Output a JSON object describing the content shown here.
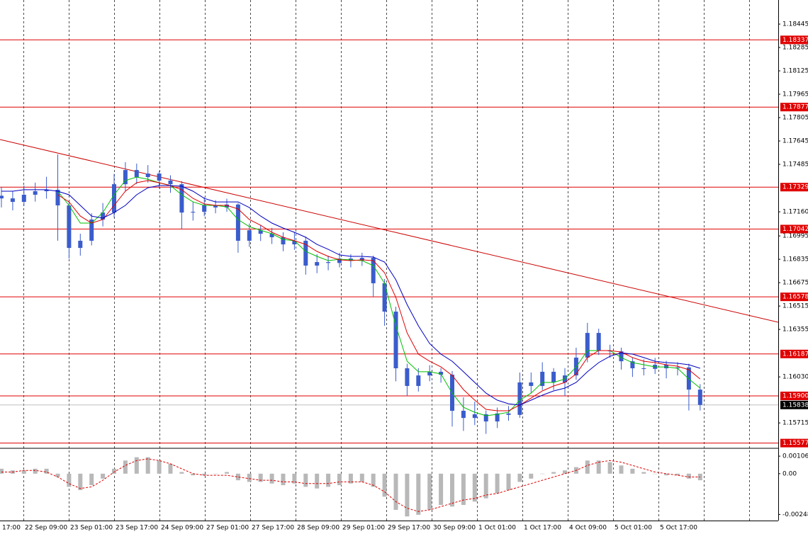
{
  "chart_data": {
    "type": "candlestick",
    "ylim": [
      1.15546,
      1.1861
    ],
    "yticks": [
      1.18445,
      1.18285,
      1.18125,
      1.17965,
      1.17805,
      1.17645,
      1.17485,
      {
        "value": 1.1716,
        "label": "1.17160"
      },
      1.16995,
      1.16835,
      1.16675,
      1.16515,
      1.16355,
      {
        "value": 1.1603,
        "label": "1.16030"
      },
      1.15715
    ],
    "time_labels": [
      "17:00",
      "22 Sep 09:00",
      "23 Sep 01:00",
      "23 Sep 17:00",
      "24 Sep 09:00",
      "27 Sep 01:00",
      "27 Sep 17:00",
      "28 Sep 09:00",
      "29 Sep 01:00",
      "29 Sep 17:00",
      "30 Sep 09:00",
      "1 Oct 01:00",
      "1 Oct 17:00",
      "4 Oct 09:00",
      "5 Oct 01:00",
      "5 Oct 17:00"
    ],
    "color": "#3a5ccc",
    "open": [
      1.1727,
      1.17252,
      1.17228,
      1.17277,
      1.17301,
      1.17311,
      1.17204,
      1.16913,
      1.16962,
      1.17107,
      1.17155,
      1.17349,
      1.17446,
      1.17398,
      1.17422,
      1.17374,
      1.17349,
      1.17155,
      1.1716,
      1.17204,
      1.1719,
      1.1721,
      1.16962,
      1.17034,
      1.1701,
      1.16986,
      1.16937,
      1.16962,
      1.16792,
      1.16816,
      1.1681,
      1.1684,
      1.16826,
      1.16845,
      1.16671,
      1.16477,
      1.16089,
      1.15968,
      1.1604,
      1.16065,
      1.16045,
      1.15798,
      1.15749,
      1.15774,
      1.15725,
      1.1578,
      1.1577,
      1.15992,
      1.15968,
      1.16065,
      1.15992,
      1.1604,
      1.16162,
      1.16331,
      1.1621,
      1.16205,
      1.16137,
      1.16089,
      1.16085,
      1.16113,
      1.16089,
      1.16095,
      1.15943
    ],
    "high": [
      1.1733,
      1.173,
      1.1734,
      1.1736,
      1.174,
      1.17553,
      1.1723,
      1.1701,
      1.1715,
      1.1722,
      1.1742,
      1.175,
      1.1749,
      1.1748,
      1.1744,
      1.1741,
      1.1737,
      1.1723,
      1.1726,
      1.1724,
      1.1725,
      1.1722,
      1.1708,
      1.1707,
      1.1705,
      1.1702,
      1.1702,
      1.1699,
      1.1687,
      1.1686,
      1.1688,
      1.1687,
      1.1688,
      1.1686,
      1.167,
      1.1651,
      1.1612,
      1.1609,
      1.1611,
      1.1609,
      1.1607,
      1.1589,
      1.1586,
      1.158,
      1.1582,
      1.1583,
      1.1606,
      1.1606,
      1.1613,
      1.1609,
      1.1609,
      1.1623,
      1.164,
      1.1636,
      1.1625,
      1.1623,
      1.1616,
      1.1615,
      1.1616,
      1.1614,
      1.1613,
      1.1612,
      1.1598
    ],
    "low": [
      1.1719,
      1.1717,
      1.172,
      1.1723,
      1.1725,
      1.16962,
      1.1684,
      1.1686,
      1.1693,
      1.1706,
      1.1712,
      1.173,
      1.1735,
      1.1736,
      1.1732,
      1.1729,
      1.1704,
      1.171,
      1.1713,
      1.1715,
      1.1716,
      1.1688,
      1.1692,
      1.1696,
      1.1694,
      1.1689,
      1.169,
      1.1673,
      1.1674,
      1.1676,
      1.1678,
      1.1678,
      1.1679,
      1.1658,
      1.1638,
      1.16,
      1.159,
      1.1593,
      1.16,
      1.1599,
      1.1569,
      1.1566,
      1.157,
      1.1564,
      1.1568,
      1.1573,
      1.1575,
      1.1592,
      1.1594,
      1.1594,
      1.159,
      1.1601,
      1.1613,
      1.1618,
      1.1616,
      1.1608,
      1.1603,
      1.1604,
      1.1605,
      1.1602,
      1.1604,
      1.158,
      1.158
    ],
    "close": [
      1.17252,
      1.17228,
      1.17277,
      1.17301,
      1.17311,
      1.17204,
      1.16913,
      1.16962,
      1.17107,
      1.17155,
      1.17349,
      1.17446,
      1.17398,
      1.17422,
      1.17374,
      1.17349,
      1.17155,
      1.1716,
      1.17204,
      1.1719,
      1.1721,
      1.16962,
      1.17034,
      1.1701,
      1.16986,
      1.16937,
      1.16962,
      1.16792,
      1.16816,
      1.1681,
      1.1684,
      1.16826,
      1.16845,
      1.16671,
      1.16477,
      1.16089,
      1.15968,
      1.1604,
      1.16065,
      1.16045,
      1.15798,
      1.15749,
      1.15774,
      1.15725,
      1.1578,
      1.1577,
      1.15992,
      1.15968,
      1.16065,
      1.15992,
      1.1604,
      1.16162,
      1.16331,
      1.1621,
      1.16205,
      1.16137,
      1.16089,
      1.16085,
      1.16113,
      1.16089,
      1.16095,
      1.15943,
      1.15838
    ],
    "moving_averages": [
      {
        "color": "#00c000",
        "values": [
          null,
          null,
          null,
          null,
          null,
          1.17301,
          1.17204,
          1.17083,
          1.17083,
          1.17155,
          1.17277,
          1.17374,
          1.17398,
          1.17383,
          1.17359,
          1.1734,
          1.17277,
          1.17228,
          1.17204,
          1.17204,
          1.17194,
          1.17107,
          1.17058,
          1.17034,
          1.1701,
          1.16971,
          1.16962,
          1.16889,
          1.16855,
          1.16826,
          1.16835,
          1.16831,
          1.16826,
          1.16792,
          1.16671,
          1.1638,
          1.16137,
          1.16065,
          1.16065,
          1.1605,
          1.15919,
          1.15822,
          1.15788,
          1.15764,
          1.15774,
          1.15788,
          1.15871,
          1.15919,
          1.15992,
          1.15992,
          1.16016,
          1.16098,
          1.1621,
          1.1621,
          1.1621,
          1.16162,
          1.16128,
          1.16113,
          1.16098,
          1.16098,
          1.16089,
          1.16016,
          1.15953
        ]
      },
      {
        "color": "#e00000",
        "values": [
          null,
          null,
          null,
          null,
          null,
          1.17277,
          1.17228,
          1.17131,
          1.17083,
          1.17107,
          1.17204,
          1.17301,
          1.17359,
          1.17374,
          1.17359,
          1.1734,
          1.17311,
          1.17252,
          1.17214,
          1.17204,
          1.17204,
          1.1718,
          1.17107,
          1.17068,
          1.1702,
          1.16986,
          1.16962,
          1.16937,
          1.16889,
          1.16855,
          1.16831,
          1.16826,
          1.16831,
          1.16826,
          1.16743,
          1.16574,
          1.16331,
          1.16186,
          1.16137,
          1.16098,
          1.1604,
          1.15943,
          1.15871,
          1.15808,
          1.15798,
          1.15798,
          1.15837,
          1.15885,
          1.15934,
          1.15968,
          1.15992,
          1.1605,
          1.16162,
          1.1621,
          1.1621,
          1.162,
          1.16162,
          1.16137,
          1.16128,
          1.16113,
          1.16103,
          1.16079,
          1.16016
        ]
      },
      {
        "color": "#0000c0",
        "values": [
          1.17301,
          1.17301,
          1.17311,
          1.17311,
          1.17311,
          1.17301,
          1.17277,
          1.17204,
          1.17131,
          1.17117,
          1.17155,
          1.17204,
          1.17277,
          1.17325,
          1.1734,
          1.1734,
          1.17335,
          1.17301,
          1.17252,
          1.17228,
          1.17228,
          1.17228,
          1.17189,
          1.17131,
          1.17083,
          1.17049,
          1.1702,
          1.16986,
          1.16937,
          1.16903,
          1.16865,
          1.16855,
          1.16855,
          1.1685,
          1.16816,
          1.16695,
          1.16525,
          1.1638,
          1.16258,
          1.16186,
          1.16137,
          1.16065,
          1.15992,
          1.15919,
          1.15871,
          1.15846,
          1.15837,
          1.15871,
          1.15905,
          1.15934,
          1.15953,
          1.15992,
          1.16065,
          1.16128,
          1.16171,
          1.16195,
          1.16186,
          1.16162,
          1.16137,
          1.16128,
          1.16123,
          1.16113,
          1.16089
        ]
      }
    ],
    "trendline": {
      "color": "#cc0000",
      "values": [
        1.17655,
        1.16404
      ]
    },
    "levels": [
      1.18337,
      1.17877,
      1.17329,
      1.17042,
      1.16578,
      1.16187,
      {
        "value": 1.159,
        "label": "1.15900"
      },
      1.15577
    ],
    "level_color": "#e00000",
    "current_price": 1.15838,
    "macd": {
      "ylim": [
        -0.00285,
        0.0015
      ],
      "yticks": [
        0.001065,
        {
          "value": 0,
          "label": "0.00"
        },
        -0.00248
      ],
      "histogram_color": "#b8b8b8",
      "signal_color": "#e00000",
      "histogram": [
        0.0003,
        0.0002,
        0.0002,
        0.0003,
        0.0003,
        -0.0002,
        -0.0008,
        -0.001,
        -0.0007,
        -0.0003,
        0.0003,
        0.0008,
        0.001,
        0.001,
        0.0008,
        0.0006,
        0.0001,
        -0.0001,
        -0.0001,
        0.0,
        0.0001,
        -0.0004,
        -0.0005,
        -0.0005,
        -0.0006,
        -0.0007,
        -0.0006,
        -0.0008,
        -0.0009,
        -0.0008,
        -0.0007,
        -0.0006,
        -0.0005,
        -0.0008,
        -0.0014,
        -0.0022,
        -0.0026,
        -0.0025,
        -0.0022,
        -0.0019,
        -0.002,
        -0.0019,
        -0.0017,
        -0.0015,
        -0.0012,
        -0.001,
        -0.0005,
        -0.0003,
        0.0,
        0.0001,
        0.0002,
        0.0004,
        0.0008,
        0.0008,
        0.0007,
        0.0005,
        0.0003,
        0.0001,
        0.0,
        -0.0001,
        -0.0001,
        -0.0003,
        -0.0004
      ],
      "signal": [
        0.0001,
        0.0001,
        0.0002,
        0.0002,
        0.0001,
        -0.0002,
        -0.0006,
        -0.0009,
        -0.0008,
        -0.0004,
        0.0001,
        0.0005,
        0.0008,
        0.0009,
        0.0008,
        0.0006,
        0.0003,
        0.0,
        -0.0001,
        -0.0001,
        -0.0001,
        -0.0002,
        -0.0003,
        -0.0004,
        -0.0004,
        -0.0005,
        -0.0005,
        -0.0006,
        -0.0006,
        -0.0006,
        -0.0005,
        -0.0005,
        -0.0005,
        -0.0007,
        -0.0011,
        -0.0017,
        -0.0021,
        -0.0023,
        -0.0022,
        -0.002,
        -0.0018,
        -0.0016,
        -0.0015,
        -0.0013,
        -0.0012,
        -0.001,
        -0.0008,
        -0.0006,
        -0.0004,
        -0.0002,
        0.0,
        0.0002,
        0.0005,
        0.0007,
        0.0008,
        0.0007,
        0.0005,
        0.0003,
        0.0001,
        0.0,
        -0.0001,
        -0.0002,
        -0.0002
      ]
    }
  }
}
